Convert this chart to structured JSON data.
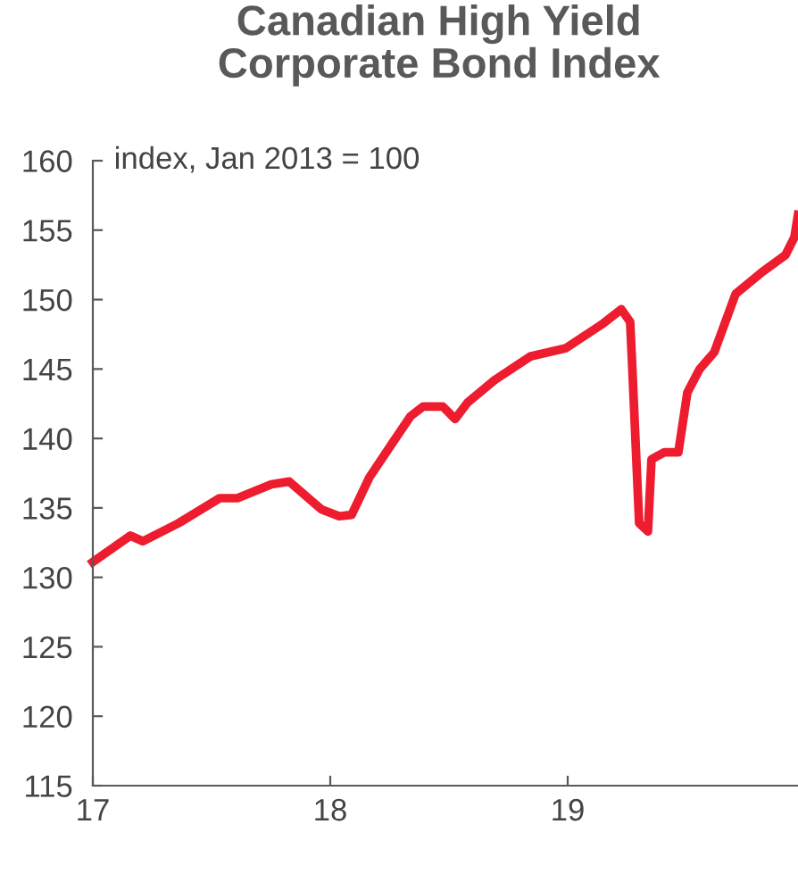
{
  "chart_data": {
    "type": "line",
    "title": "Canadian High Yield\nCorporate Bond Index",
    "ylabel": "index, Jan 2013 = 100",
    "x": [
      2017.0,
      2017.158,
      2017.211,
      2017.361,
      2017.534,
      2017.609,
      2017.752,
      2017.827,
      2017.962,
      2018.038,
      2018.09,
      2018.165,
      2018.263,
      2018.338,
      2018.391,
      2018.474,
      2018.526,
      2018.579,
      2018.692,
      2018.842,
      2018.992,
      2019.143,
      2019.226,
      2019.263,
      2019.271,
      2019.301,
      2019.338,
      2019.353,
      2019.406,
      2019.466,
      2019.504,
      2019.556,
      2019.617,
      2019.707,
      2019.82,
      2019.917,
      2019.955,
      2019.97
    ],
    "series": [
      {
        "color": "#ed1c2e",
        "values": [
          131.1,
          133.0,
          132.6,
          133.9,
          135.7,
          135.7,
          136.7,
          136.9,
          134.9,
          134.4,
          134.5,
          137.2,
          139.7,
          141.6,
          142.3,
          142.3,
          141.4,
          142.6,
          144.2,
          145.9,
          146.5,
          148.2,
          149.3,
          148.4,
          145.5,
          133.9,
          133.3,
          138.5,
          139.0,
          139.0,
          143.3,
          145.0,
          146.2,
          150.4,
          152.0,
          153.2,
          154.5,
          156.1
        ]
      }
    ],
    "xlim": [
      2017.0,
      2019.97
    ],
    "xticks": [
      {
        "value": 2017,
        "label": "17"
      },
      {
        "value": 2018,
        "label": "18"
      },
      {
        "value": 2019,
        "label": "19"
      }
    ],
    "ylim": [
      115,
      160
    ],
    "yticks": [
      115,
      120,
      125,
      130,
      135,
      140,
      145,
      150,
      155,
      160
    ],
    "grid": false,
    "legend": false,
    "marker": "none",
    "line_style": "solid"
  }
}
